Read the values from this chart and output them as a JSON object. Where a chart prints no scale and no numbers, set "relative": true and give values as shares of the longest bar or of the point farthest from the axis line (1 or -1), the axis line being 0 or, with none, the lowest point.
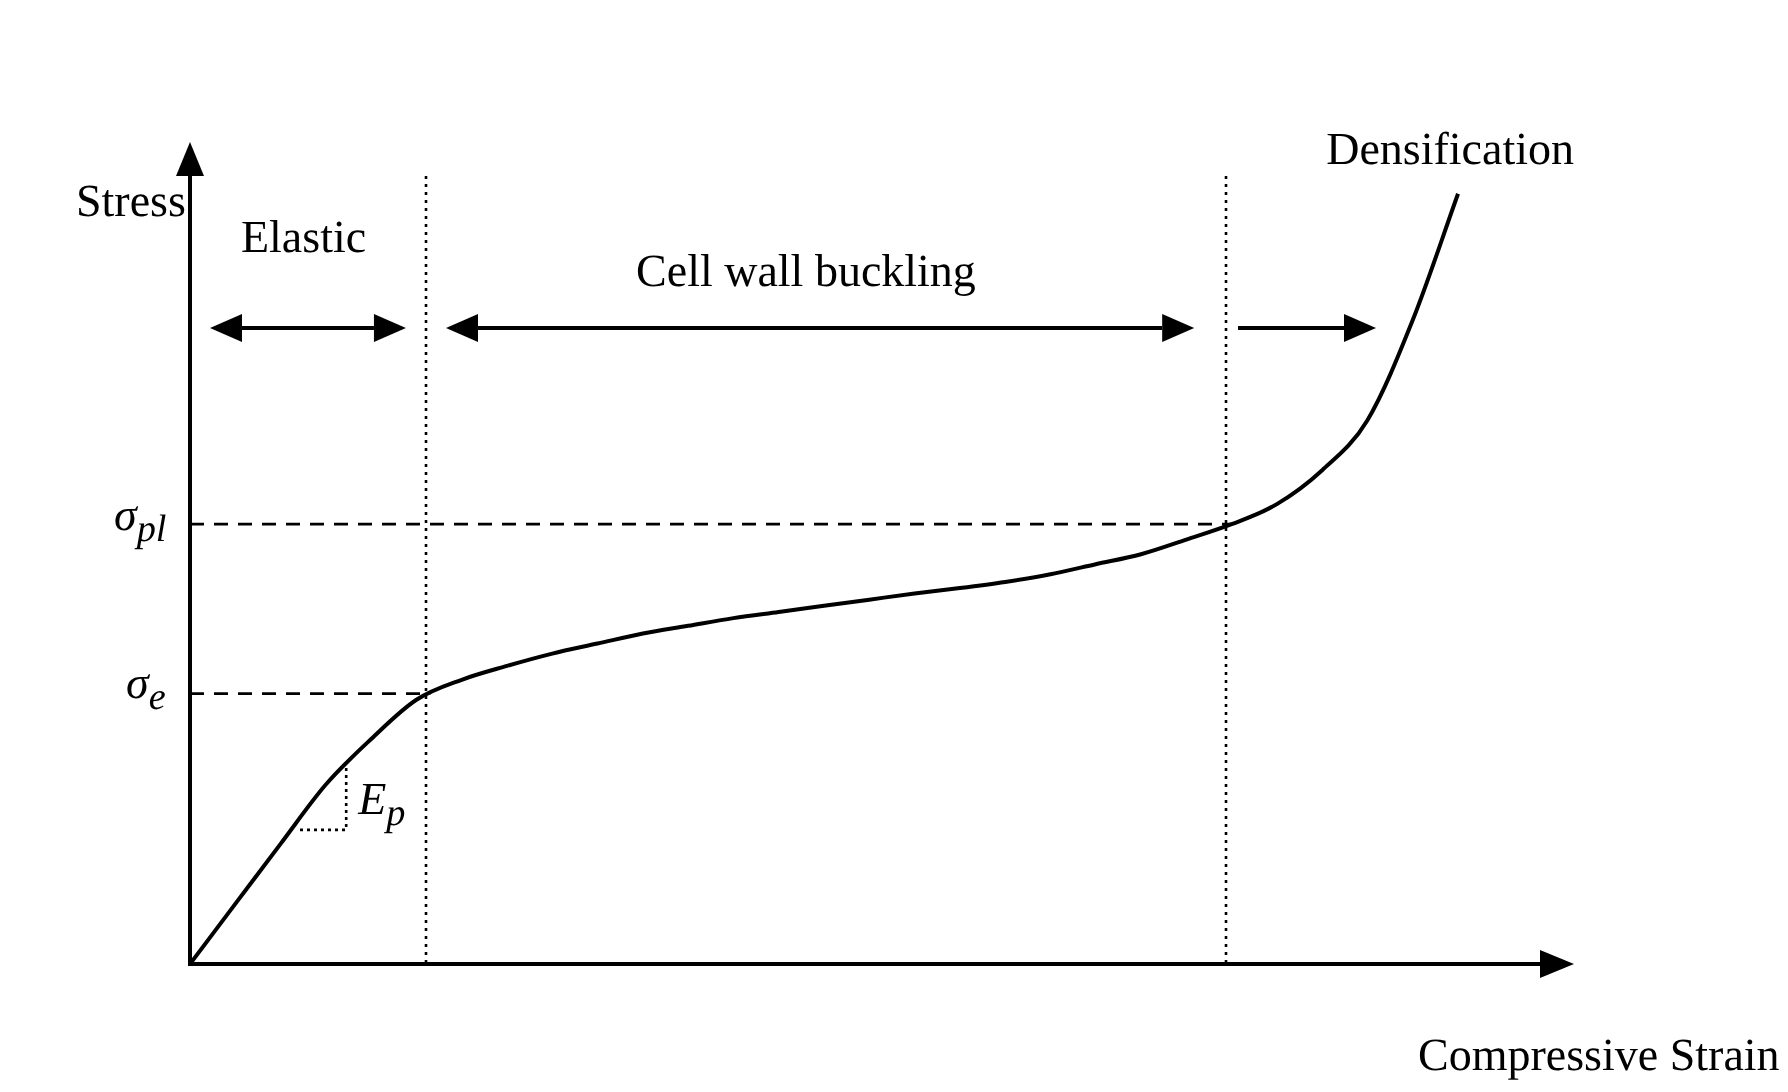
{
  "chart_data": {
    "type": "line",
    "relative": true,
    "xlabel": "Compressive Strain",
    "ylabel": "Stress",
    "categories": [
      null,
      null,
      null,
      null,
      null,
      null,
      null,
      null,
      null,
      null,
      null,
      null,
      null,
      null,
      null,
      null,
      null,
      null,
      null,
      null,
      null,
      null,
      null,
      null,
      null,
      null,
      null,
      null,
      null
    ],
    "series": [
      {
        "color": "#000000",
        "values": [
          0,
          0.078,
          0.156,
          0.233,
          0.292,
          0.343,
          0.369,
          0.387,
          0.403,
          0.416,
          0.429,
          0.439,
          0.449,
          0.457,
          0.465,
          0.473,
          0.481,
          0.488,
          0.496,
          0.506,
          0.519,
          0.532,
          0.551,
          0.571,
          0.597,
          0.641,
          0.706,
          0.836,
          1
        ]
      }
    ],
    "ref_lines": [
      {
        "axis": "y",
        "value": 0.351,
        "label": "σ$_{e}$",
        "line_style": "dashed",
        "color": "#000000"
      },
      {
        "axis": "y",
        "value": 0.571,
        "label": "σ$_{pl}$",
        "line_style": "dashed",
        "color": "#000000"
      }
    ],
    "annotations": [
      "Elastic",
      "Cell wall buckling",
      "Densification",
      "E$_{p}$"
    ],
    "marker": "none",
    "line_style": "solid",
    "legend": false,
    "grid": false,
    "tick_labels": false
  }
}
